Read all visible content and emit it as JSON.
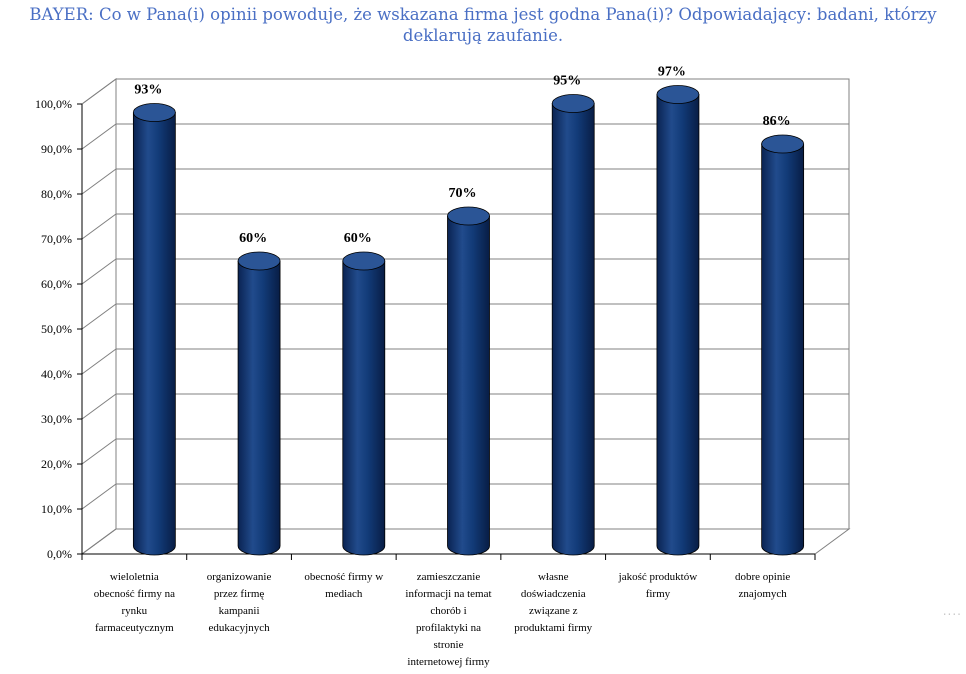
{
  "title_lines": [
    "BAYER: Co w Pana(i) opinii powoduje, że wskazana firma jest godna Pana(i)? Odpowiadający: badani, którzy",
    "deklarują zaufanie."
  ],
  "colors": {
    "bar": "#0f2f66",
    "bar_highlight": "#2b5596",
    "title": "#4a6fc4",
    "grid": "#808080"
  },
  "chart_data": {
    "type": "bar",
    "title": "BAYER: Co w Pana(i) opinii powoduje, że wskazana firma jest godna Pana(i)? Odpowiadający: badani, którzy deklarują zaufanie.",
    "categories": [
      [
        "wieloletnia",
        "obecność firmy na",
        "rynku",
        "farmaceutycznym"
      ],
      [
        "organizowanie",
        "przez firmę",
        "kampanii",
        "edukacyjnych"
      ],
      [
        "obecność firmy w",
        "mediach"
      ],
      [
        "zamieszczanie",
        "informacji na temat",
        "chorób i",
        "profilaktyki na",
        "stronie",
        "internetowej firmy"
      ],
      [
        "własne",
        "doświadczenia",
        "związane z",
        "produktami firmy"
      ],
      [
        "jakość produktów",
        "firmy"
      ],
      [
        "dobre opinie",
        "znajomych"
      ]
    ],
    "values": [
      93,
      60,
      60,
      70,
      95,
      97,
      86
    ],
    "value_labels": [
      "93%",
      "60%",
      "60%",
      "70%",
      "95%",
      "97%",
      "86%"
    ],
    "yticks": [
      "0,0%",
      "10,0%",
      "20,0%",
      "30,0%",
      "40,0%",
      "50,0%",
      "60,0%",
      "70,0%",
      "80,0%",
      "90,0%",
      "100,0%"
    ],
    "ylim": [
      0,
      100
    ],
    "xlabel": "",
    "ylabel": "",
    "grid": true,
    "style": "3d-cylinder"
  },
  "footer_more": "...."
}
